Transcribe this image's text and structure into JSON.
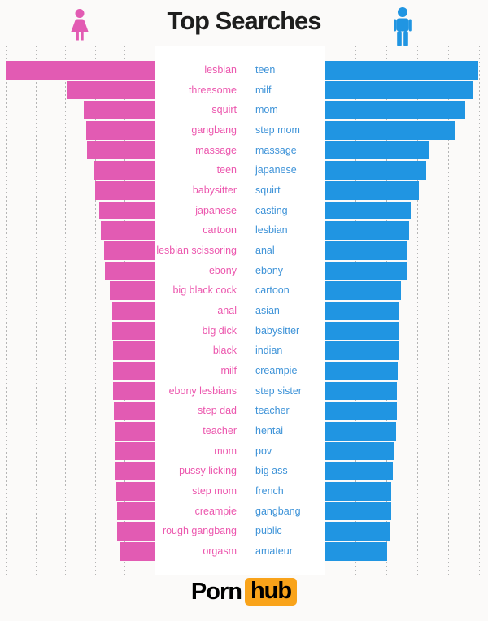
{
  "title": "Top Searches",
  "header": {
    "female_icon": "woman pictogram",
    "male_icon": "man pictogram"
  },
  "footer": {
    "logo_part_1": "Porn",
    "logo_part_2": "hub"
  },
  "colors": {
    "female_bar": "#e25bb3",
    "female_text": "#ec57ae",
    "male_bar": "#2095e2",
    "male_text": "#3e93d8",
    "logo_orange": "#f9a31a",
    "title_text": "#1e1e1e",
    "gridline": "#b5b5b5",
    "panel_border": "#8f8f8f"
  },
  "chart_data": {
    "type": "bar",
    "orientation": "horizontal-mirrored",
    "title": "Top Searches",
    "grid": "dotted vertical gridlines, 5 intervals per side",
    "legend_position": "icons above each side (woman = left/pink, man = right/blue)",
    "axis_note": "no numeric axis shown; values are bar lengths as % of the longest bar on each side",
    "xlim_pct": [
      0,
      100
    ],
    "series": [
      {
        "name": "women",
        "side": "left",
        "color": "#e25bb3",
        "categories": [
          "lesbian",
          "threesome",
          "squirt",
          "gangbang",
          "massage",
          "teen",
          "babysitter",
          "japanese",
          "cartoon",
          "lesbian scissoring",
          "ebony",
          "big black cock",
          "anal",
          "big dick",
          "black",
          "milf",
          "ebony lesbians",
          "step dad",
          "teacher",
          "mom",
          "pussy licking",
          "step mom",
          "creampie",
          "rough gangbang",
          "orgasm"
        ],
        "values_pct_of_max": [
          100,
          59,
          47.5,
          46,
          45.5,
          40.5,
          40,
          37,
          36,
          34,
          33.5,
          30,
          28.5,
          28.5,
          28,
          28,
          28,
          27.5,
          27,
          27,
          26,
          25.5,
          25,
          25,
          23.5
        ]
      },
      {
        "name": "men",
        "side": "right",
        "color": "#2095e2",
        "categories": [
          "teen",
          "milf",
          "mom",
          "step mom",
          "massage",
          "japanese",
          "squirt",
          "casting",
          "lesbian",
          "anal",
          "ebony",
          "cartoon",
          "asian",
          "babysitter",
          "indian",
          "creampie",
          "step sister",
          "teacher",
          "hentai",
          "pov",
          "big ass",
          "french",
          "gangbang",
          "public",
          "amateur"
        ],
        "values_pct_of_max": [
          100,
          96,
          91.5,
          85,
          67.5,
          66,
          61,
          56,
          55,
          53.5,
          53.5,
          49.5,
          48.5,
          48.5,
          48,
          47.5,
          47,
          47,
          46.5,
          44.5,
          44,
          43,
          43,
          42.5,
          40.5
        ]
      }
    ]
  }
}
